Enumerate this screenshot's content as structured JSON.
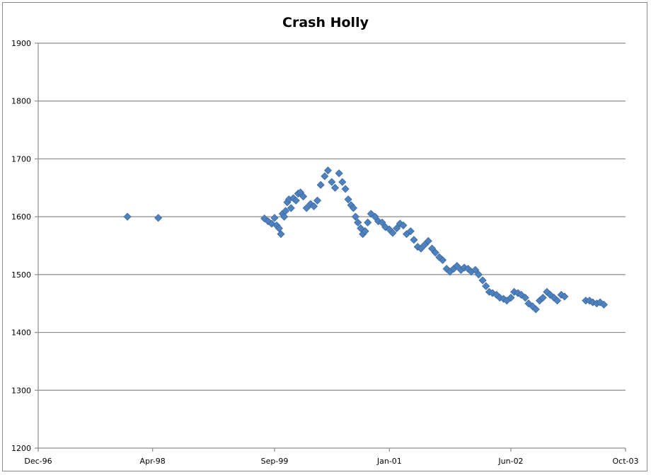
{
  "chart_data": {
    "type": "scatter",
    "title": "Crash Holly",
    "xlabel": "",
    "ylabel": "",
    "x_axis_type": "date",
    "xlim": [
      "1996-12-01",
      "2003-10-01"
    ],
    "ylim": [
      1200,
      1900
    ],
    "x_ticks": [
      {
        "date": "1996-12-01",
        "label": "Dec-96"
      },
      {
        "date": "1998-04-01",
        "label": "Apr-98"
      },
      {
        "date": "1999-09-01",
        "label": "Sep-99"
      },
      {
        "date": "2001-01-01",
        "label": "Jan-01"
      },
      {
        "date": "2002-06-01",
        "label": "Jun-02"
      },
      {
        "date": "2003-10-01",
        "label": "Oct-03"
      }
    ],
    "y_ticks": [
      1200,
      1300,
      1400,
      1500,
      1600,
      1700,
      1800,
      1900
    ],
    "grid": true,
    "legend": "none",
    "marker": "diamond",
    "marker_color": "#4f81bd",
    "series": [
      {
        "x": [
          "1997-12-15",
          "1998-04-25",
          "1999-07-20",
          "1999-08-05",
          "1999-08-20",
          "1999-09-01",
          "1999-09-10",
          "1999-09-20",
          "1999-09-28",
          "1999-10-05",
          "1999-10-12",
          "1999-10-18",
          "1999-10-25",
          "1999-11-01",
          "1999-11-10",
          "1999-11-20",
          "1999-12-01",
          "1999-12-10",
          "1999-12-20",
          "2000-01-01",
          "2000-01-15",
          "2000-02-01",
          "2000-02-15",
          "2000-03-01",
          "2000-03-15",
          "2000-04-01",
          "2000-04-15",
          "2000-05-01",
          "2000-05-15",
          "2000-06-01",
          "2000-06-15",
          "2000-06-28",
          "2000-07-10",
          "2000-07-22",
          "2000-08-01",
          "2000-08-10",
          "2000-08-20",
          "2000-09-01",
          "2000-09-10",
          "2000-09-20",
          "2000-10-01",
          "2000-10-15",
          "2000-11-01",
          "2000-11-15",
          "2000-12-01",
          "2000-12-15",
          "2001-01-01",
          "2001-01-15",
          "2001-02-01",
          "2001-02-15",
          "2001-03-01",
          "2001-03-15",
          "2001-04-01",
          "2001-04-15",
          "2001-05-01",
          "2001-05-15",
          "2001-06-01",
          "2001-06-15",
          "2001-07-01",
          "2001-07-15",
          "2001-08-01",
          "2001-08-15",
          "2001-09-01",
          "2001-09-15",
          "2001-10-01",
          "2001-10-15",
          "2001-11-01",
          "2001-11-15",
          "2001-12-01",
          "2001-12-15",
          "2002-01-01",
          "2002-01-15",
          "2002-02-01",
          "2002-02-15",
          "2002-03-01",
          "2002-03-15",
          "2002-04-01",
          "2002-04-15",
          "2002-05-01",
          "2002-05-15",
          "2002-06-01",
          "2002-06-15",
          "2002-07-01",
          "2002-07-15",
          "2002-08-01",
          "2002-08-15",
          "2002-09-01",
          "2002-09-15",
          "2002-10-01",
          "2002-10-15",
          "2002-11-01",
          "2002-11-15",
          "2002-12-01",
          "2002-12-15",
          "2003-01-01",
          "2003-01-15",
          "2003-04-15",
          "2003-05-01",
          "2003-05-15",
          "2003-06-01",
          "2003-06-15",
          "2003-07-01"
        ],
        "y": [
          1600,
          1598,
          1597,
          1592,
          1588,
          1598,
          1585,
          1580,
          1570,
          1605,
          1600,
          1610,
          1625,
          1630,
          1615,
          1632,
          1628,
          1640,
          1642,
          1635,
          1615,
          1622,
          1618,
          1628,
          1655,
          1670,
          1680,
          1660,
          1650,
          1675,
          1660,
          1648,
          1630,
          1620,
          1615,
          1600,
          1590,
          1580,
          1570,
          1575,
          1590,
          1605,
          1600,
          1592,
          1590,
          1582,
          1578,
          1572,
          1580,
          1588,
          1585,
          1570,
          1575,
          1560,
          1548,
          1545,
          1552,
          1558,
          1545,
          1538,
          1530,
          1525,
          1510,
          1505,
          1510,
          1515,
          1508,
          1512,
          1510,
          1505,
          1508,
          1500,
          1490,
          1480,
          1470,
          1468,
          1465,
          1460,
          1458,
          1455,
          1460,
          1470,
          1468,
          1465,
          1460,
          1450,
          1445,
          1440,
          1455,
          1460,
          1470,
          1465,
          1460,
          1455,
          1465,
          1462,
          1455,
          1455,
          1452,
          1450,
          1452,
          1448
        ]
      }
    ]
  }
}
